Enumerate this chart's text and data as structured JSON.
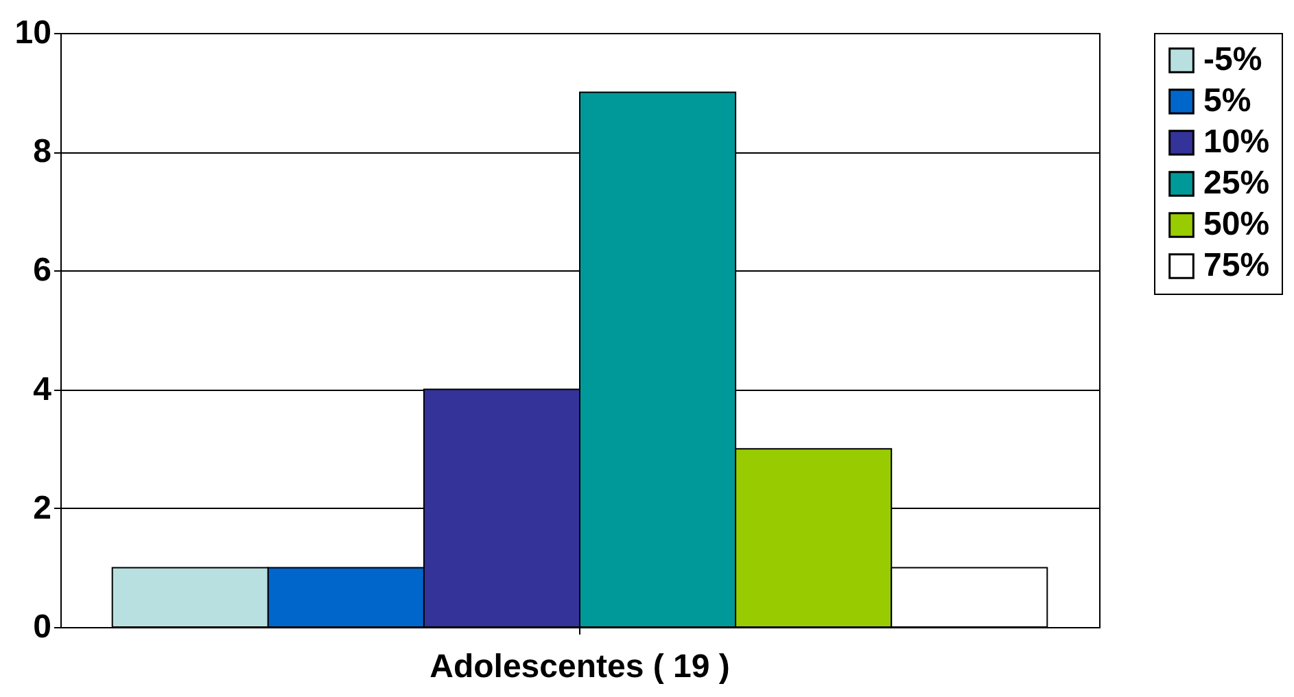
{
  "chart_data": {
    "type": "bar",
    "categories": [
      "Adolescentes ( 19 )"
    ],
    "series": [
      {
        "name": "-5%",
        "color": "#b9e0e0",
        "values": [
          1
        ]
      },
      {
        "name": "5%",
        "color": "#0066cc",
        "values": [
          1
        ]
      },
      {
        "name": "10%",
        "color": "#333399",
        "values": [
          4
        ]
      },
      {
        "name": "25%",
        "color": "#009999",
        "values": [
          9
        ]
      },
      {
        "name": "50%",
        "color": "#99cc00",
        "values": [
          3
        ]
      },
      {
        "name": "75%",
        "color": "#ffffff",
        "values": [
          1
        ]
      }
    ],
    "ylim": [
      0,
      10
    ],
    "yticks": [
      0,
      2,
      4,
      6,
      8,
      10
    ],
    "grid": "y",
    "legend": "right"
  }
}
